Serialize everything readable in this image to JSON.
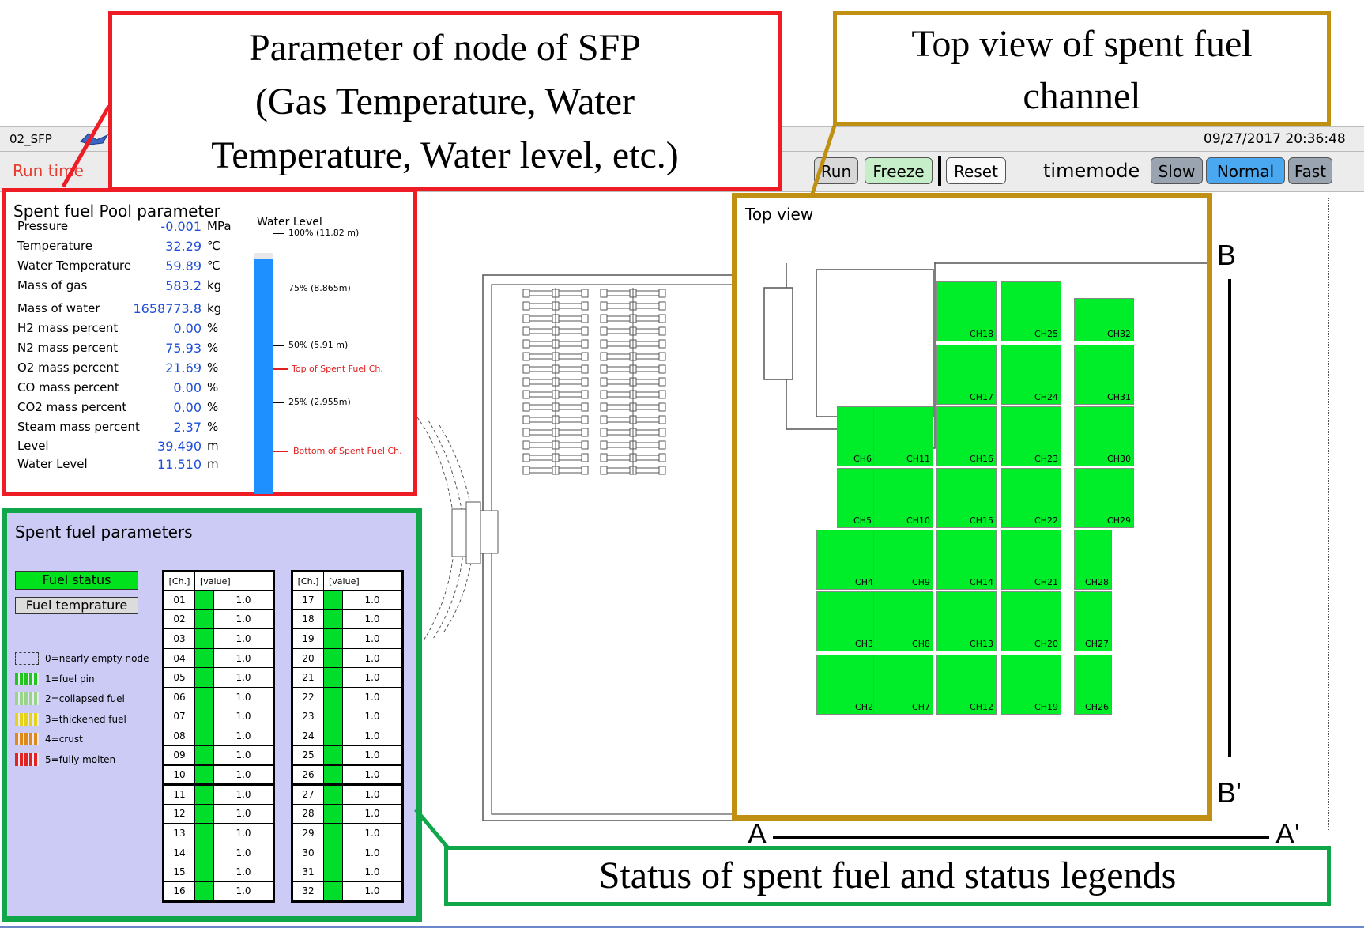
{
  "callouts": {
    "sfp_node": [
      "Parameter of node of SFP",
      "(Gas Temperature, Water",
      "Temperature, Water level, etc.)"
    ],
    "top_view": [
      "Top view of spent fuel",
      "channel"
    ],
    "status": "Status of spent fuel and status legends"
  },
  "app": {
    "name": "02_SFP",
    "datetime": "09/27/2017 20:36:48",
    "run_time_label": "Run time",
    "buttons": {
      "run": "Run",
      "freeze": "Freeze",
      "reset": "Reset"
    },
    "timemode_label": "timemode",
    "timemode": {
      "slow": "Slow",
      "normal": "Normal",
      "fast": "Fast"
    }
  },
  "pool": {
    "title": "Spent fuel Pool parameter",
    "rows": [
      {
        "label": "Pressure",
        "value": "-0.001",
        "unit": "MPa"
      },
      {
        "label": "Temperature",
        "value": "32.29",
        "unit": "℃"
      },
      {
        "label": "Water Temperature",
        "value": "59.89",
        "unit": "℃"
      },
      {
        "label": "Mass of gas",
        "value": "583.2",
        "unit": "kg"
      },
      {
        "label": "Mass of water",
        "value": "1658773.8",
        "unit": "kg"
      },
      {
        "label": "H2 mass percent",
        "value": "0.00",
        "unit": "%"
      },
      {
        "label": "N2 mass percent",
        "value": "75.93",
        "unit": "%"
      },
      {
        "label": "O2 mass percent",
        "value": "21.69",
        "unit": "%"
      },
      {
        "label": "CO mass percent",
        "value": "0.00",
        "unit": "%"
      },
      {
        "label": "CO2 mass percent",
        "value": "0.00",
        "unit": "%"
      },
      {
        "label": "Steam mass percent",
        "value": "2.37",
        "unit": "%"
      },
      {
        "label": "Level",
        "value": "39.490",
        "unit": "m"
      },
      {
        "label": "Water Level",
        "value": "11.510",
        "unit": "m"
      }
    ],
    "water_level": {
      "title": "Water Level",
      "ticks": [
        "100% (11.82 m)",
        "75% (8.865m)",
        "50% (5.91 m)",
        "25% (2.955m)"
      ],
      "top_marker": "Top of Spent Fuel Ch.",
      "bottom_marker": "Bottom of Spent Fuel Ch.",
      "fill_fraction": 0.974,
      "bar_color": "#1e90ff"
    }
  },
  "fuel": {
    "title": "Spent fuel parameters",
    "status_button": "Fuel status",
    "temp_button": "Fuel temprature",
    "legend": [
      {
        "label": "0=nearly empty node",
        "color": "none"
      },
      {
        "label": "1=fuel pin",
        "color": "#22c41e"
      },
      {
        "label": "2=collapsed fuel",
        "color": "#9ad48a"
      },
      {
        "label": "3=thickened fuel",
        "color": "#e6d21a"
      },
      {
        "label": "4=crust",
        "color": "#e0891a"
      },
      {
        "label": "5=fully molten",
        "color": "#e02424"
      }
    ],
    "table_headers": {
      "ch": "[Ch.]",
      "value": "[value]"
    },
    "channels_left": [
      {
        "ch": "01",
        "value": "1.0"
      },
      {
        "ch": "02",
        "value": "1.0"
      },
      {
        "ch": "03",
        "value": "1.0"
      },
      {
        "ch": "04",
        "value": "1.0"
      },
      {
        "ch": "05",
        "value": "1.0"
      },
      {
        "ch": "06",
        "value": "1.0"
      },
      {
        "ch": "07",
        "value": "1.0"
      },
      {
        "ch": "08",
        "value": "1.0"
      },
      {
        "ch": "09",
        "value": "1.0"
      },
      {
        "ch": "10",
        "value": "1.0"
      },
      {
        "ch": "11",
        "value": "1.0"
      },
      {
        "ch": "12",
        "value": "1.0"
      },
      {
        "ch": "13",
        "value": "1.0"
      },
      {
        "ch": "14",
        "value": "1.0"
      },
      {
        "ch": "15",
        "value": "1.0"
      },
      {
        "ch": "16",
        "value": "1.0"
      }
    ],
    "channels_right": [
      {
        "ch": "17",
        "value": "1.0"
      },
      {
        "ch": "18",
        "value": "1.0"
      },
      {
        "ch": "19",
        "value": "1.0"
      },
      {
        "ch": "20",
        "value": "1.0"
      },
      {
        "ch": "21",
        "value": "1.0"
      },
      {
        "ch": "22",
        "value": "1.0"
      },
      {
        "ch": "23",
        "value": "1.0"
      },
      {
        "ch": "24",
        "value": "1.0"
      },
      {
        "ch": "25",
        "value": "1.0"
      },
      {
        "ch": "26",
        "value": "1.0"
      },
      {
        "ch": "27",
        "value": "1.0"
      },
      {
        "ch": "28",
        "value": "1.0"
      },
      {
        "ch": "29",
        "value": "1.0"
      },
      {
        "ch": "30",
        "value": "1.0"
      },
      {
        "ch": "31",
        "value": "1.0"
      },
      {
        "ch": "32",
        "value": "1.0"
      }
    ]
  },
  "top_view": {
    "title": "Top view",
    "channels": [
      "CH2",
      "CH3",
      "CH4",
      "CH5",
      "CH6",
      "CH7",
      "CH8",
      "CH9",
      "CH10",
      "CH11",
      "CH12",
      "CH13",
      "CH14",
      "CH15",
      "CH16",
      "CH17",
      "CH18",
      "CH19",
      "CH20",
      "CH21",
      "CH22",
      "CH23",
      "CH24",
      "CH25",
      "CH26",
      "CH27",
      "CH28",
      "CH29",
      "CH30",
      "CH31",
      "CH32"
    ],
    "fuel_color": "#00ee2a"
  },
  "section_labels": {
    "b": "B",
    "b_prime": "B'",
    "a": "A",
    "a_prime": "A'"
  },
  "colors": {
    "pool_border": "#ee1c24",
    "fuel_border": "#10a64a",
    "topview_border": "#bf9012",
    "value_blue": "#1f4fd8"
  }
}
